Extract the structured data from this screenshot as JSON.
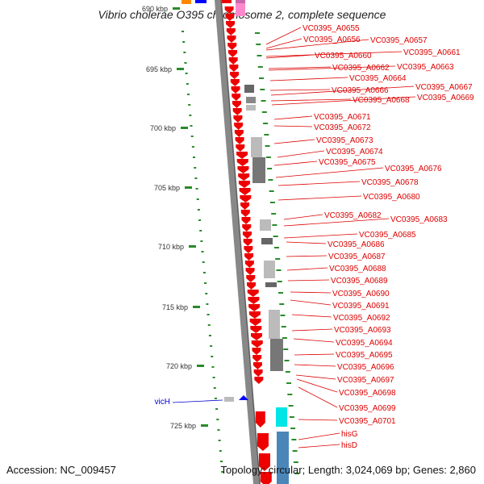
{
  "header": {
    "title": "Vibrio cholerae O395 chromosome 2, complete sequence"
  },
  "footer": {
    "accession": "Accession: NC_009457",
    "summary": "Topology: circular; Length: 3,024,069 bp; Genes: 2,860"
  },
  "map": {
    "kbp_ticks": [
      "690 kbp",
      "695 kbp",
      "700 kbp",
      "705 kbp",
      "710 kbp",
      "715 kbp",
      "720 kbp",
      "725 kbp"
    ],
    "colors": {
      "gene_red": "#ee0000",
      "tick_green": "#2a8a2a",
      "backbone": "#888888",
      "label_red": "#dd0000",
      "label_blue": "#0000cc",
      "cyan": "#00e5e5",
      "steel": "#4a86b8",
      "pink": "#ff88cc",
      "orange": "#ff8800",
      "blue_marker": "#0000ff"
    },
    "right_labels": [
      {
        "text": "VC0395_A0655"
      },
      {
        "text": "VC0395_A0656"
      },
      {
        "text": "VC0395_A0657"
      },
      {
        "text": "VC0395_A0660"
      },
      {
        "text": "VC0395_A0661"
      },
      {
        "text": "VC0395_A0662"
      },
      {
        "text": "VC0395_A0663"
      },
      {
        "text": "VC0395_A0664"
      },
      {
        "text": "VC0395_A0666"
      },
      {
        "text": "VC0395_A0667"
      },
      {
        "text": "VC0395_A0668"
      },
      {
        "text": "VC0395_A0669"
      },
      {
        "text": "VC0395_A0671"
      },
      {
        "text": "VC0395_A0672"
      },
      {
        "text": "VC0395_A0673"
      },
      {
        "text": "VC0395_A0674"
      },
      {
        "text": "VC0395_A0675"
      },
      {
        "text": "VC0395_A0676"
      },
      {
        "text": "VC0395_A0678"
      },
      {
        "text": "VC0395_A0680"
      },
      {
        "text": "VC0395_A0682"
      },
      {
        "text": "VC0395_A0683"
      },
      {
        "text": "VC0395_A0685"
      },
      {
        "text": "VC0395_A0686"
      },
      {
        "text": "VC0395_A0687"
      },
      {
        "text": "VC0395_A0688"
      },
      {
        "text": "VC0395_A0689"
      },
      {
        "text": "VC0395_A0690"
      },
      {
        "text": "VC0395_A0691"
      },
      {
        "text": "VC0395_A0692"
      },
      {
        "text": "VC0395_A0693"
      },
      {
        "text": "VC0395_A0694"
      },
      {
        "text": "VC0395_A0695"
      },
      {
        "text": "VC0395_A0696"
      },
      {
        "text": "VC0395_A0697"
      },
      {
        "text": "VC0395_A0698"
      },
      {
        "text": "VC0395_A0699"
      },
      {
        "text": "VC0395_A0701"
      },
      {
        "text": "hisG"
      },
      {
        "text": "hisD"
      }
    ],
    "left_labels": [
      {
        "text": "vicH"
      }
    ]
  }
}
